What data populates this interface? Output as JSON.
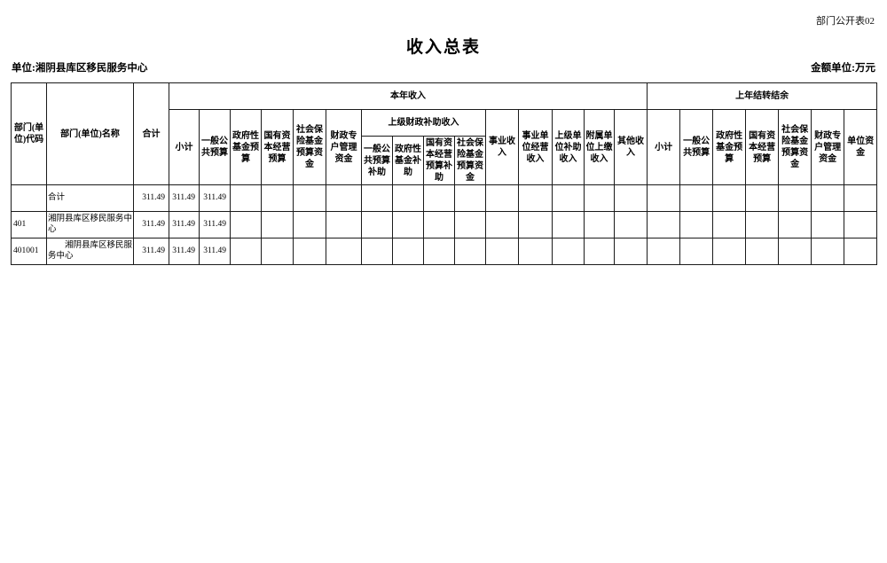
{
  "page": {
    "doc_label": "部门公开表02",
    "title": "收入总表",
    "unit_label": "单位:湘阴县库区移民服务中心",
    "amount_unit_label": "金额单位:万元"
  },
  "table": {
    "group_headers": {
      "current_year_income": "本年收入",
      "carryover": "上年结转结余",
      "superior_subsidy": "上级财政补助收入"
    },
    "columns": {
      "dept_code": "部门(单位)代码",
      "dept_name": "部门(单位)名称",
      "grand_total": "合计",
      "cy": [
        "小计",
        "一般公共预算",
        "政府性基金预算",
        "国有资本经营预算",
        "社会保险基金预算资金",
        "财政专户管理资金"
      ],
      "subsidy": [
        "一般公共预算补助",
        "政府性基金补助",
        "国有资本经营预算补助",
        "社会保险基金预算资金"
      ],
      "cy2": [
        "事业收入",
        "事业单位经营收入",
        "上级单位补助收入",
        "附属单位上缴收入",
        "其他收入"
      ],
      "carry": [
        "小计",
        "一般公共预算",
        "政府性基金预算",
        "国有资本经营预算",
        "社会保险基金预算资金",
        "财政专户管理资金",
        "单位资金"
      ]
    },
    "rows": [
      {
        "cells": [
          "",
          "合计",
          "311.49",
          "311.49",
          "311.49",
          "",
          "",
          "",
          "",
          "",
          "",
          "",
          "",
          "",
          "",
          "",
          "",
          "",
          "",
          "",
          "",
          "",
          "",
          "",
          ""
        ]
      },
      {
        "cells": [
          "401",
          "湘阴县库区移民服务中心",
          "311.49",
          "311.49",
          "311.49",
          "",
          "",
          "",
          "",
          "",
          "",
          "",
          "",
          "",
          "",
          "",
          "",
          "",
          "",
          "",
          "",
          "",
          "",
          "",
          ""
        ]
      },
      {
        "cells": [
          "401001",
          "　　湘阴县库区移民服务中心",
          "311.49",
          "311.49",
          "311.49",
          "",
          "",
          "",
          "",
          "",
          "",
          "",
          "",
          "",
          "",
          "",
          "",
          "",
          "",
          "",
          "",
          "",
          "",
          "",
          ""
        ]
      }
    ]
  }
}
